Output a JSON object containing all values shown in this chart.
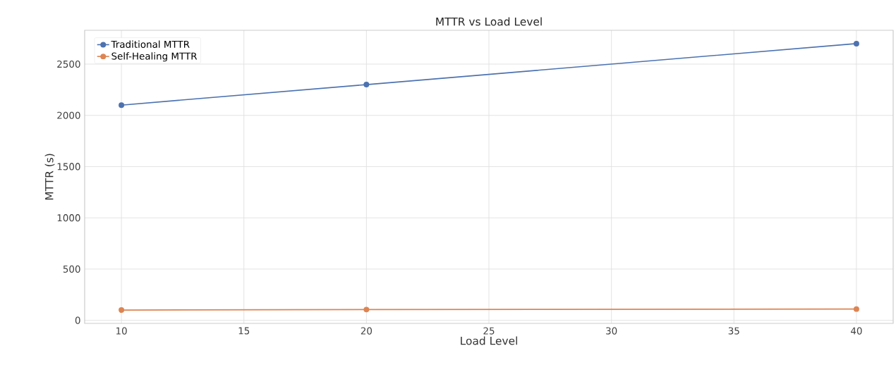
{
  "chart_data": {
    "type": "line",
    "title": "MTTR vs Load Level",
    "xlabel": "Load Level",
    "ylabel": "MTTR (s)",
    "x": [
      10,
      20,
      40
    ],
    "series": [
      {
        "name": "Traditional MTTR",
        "color": "#4c72b0",
        "values": [
          2100,
          2300,
          2700
        ]
      },
      {
        "name": "Self-Healing MTTR",
        "color": "#dd8452",
        "values": [
          100,
          105,
          110
        ]
      }
    ],
    "xlim": [
      8.5,
      41.5
    ],
    "ylim": [
      -30,
      2830
    ],
    "xticks": [
      10,
      15,
      20,
      25,
      30,
      35,
      40
    ],
    "yticks": [
      0,
      500,
      1000,
      1500,
      2000,
      2500
    ],
    "grid": true,
    "legend": "top left",
    "marker": "circle",
    "line_style": "solid"
  }
}
